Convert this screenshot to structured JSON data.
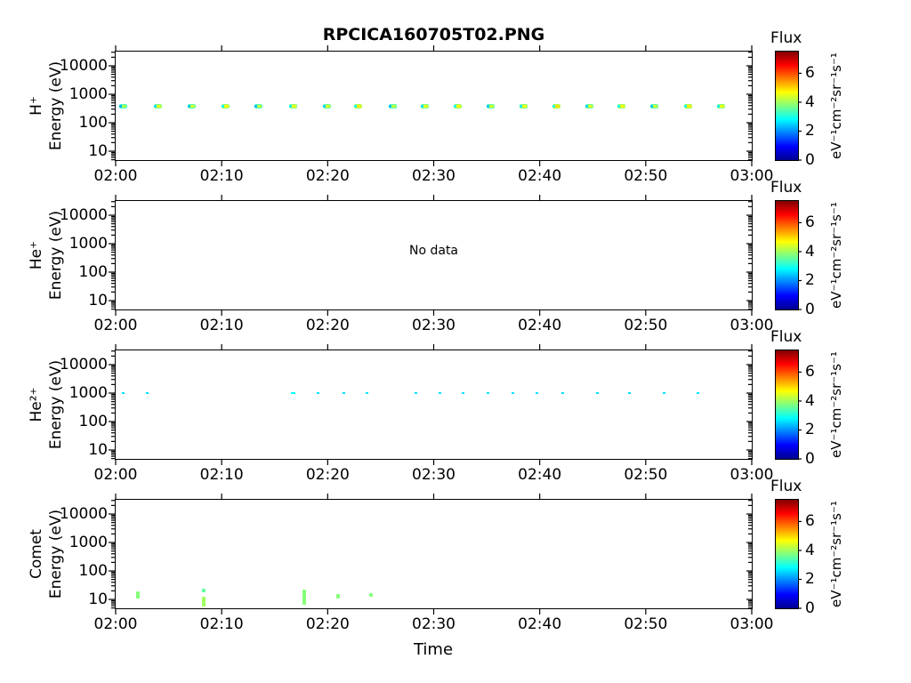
{
  "title": "RPCICA160705T02.PNG",
  "xaxis": {
    "title": "Time",
    "tick_labels": [
      "02:00",
      "02:10",
      "02:20",
      "02:30",
      "02:40",
      "02:50",
      "03:00"
    ],
    "tick_minutes": [
      0,
      10,
      20,
      30,
      40,
      50,
      60
    ]
  },
  "yaxis": {
    "tick_labels": [
      "10000",
      "1000",
      "100",
      "10"
    ],
    "tick_values_eV": [
      10000,
      1000,
      100,
      10
    ],
    "scale": "log"
  },
  "colorbar": {
    "title": "Flux",
    "units": "eV⁻¹cm⁻²sr⁻¹s⁻¹",
    "tick_labels": [
      "0",
      "2",
      "4",
      "6"
    ],
    "tick_values": [
      0,
      2,
      4,
      6
    ],
    "min": 0,
    "max": 7.5,
    "colormap": "jet"
  },
  "no_data_text": "No data",
  "chart_data": [
    {
      "id": "h-plus",
      "type": "heatmap",
      "species_display": "H⁺",
      "ylabel": "Energy (eV)",
      "y_scale": "log",
      "ylim_eV": [
        5,
        31600
      ],
      "x_range": [
        "02:00",
        "03:00"
      ],
      "no_data": false,
      "point_format": [
        "minutes_after_02:00",
        "energy_eV",
        "flux"
      ],
      "marker": {
        "style": "blob",
        "w": 9,
        "h": 5
      },
      "points": [
        [
          0.75,
          390,
          3.3
        ],
        [
          4.0,
          390,
          3.7
        ],
        [
          7.2,
          390,
          3.5
        ],
        [
          10.4,
          390,
          3.9
        ],
        [
          13.5,
          390,
          3.4
        ],
        [
          16.7,
          390,
          3.8
        ],
        [
          19.9,
          390,
          3.6
        ],
        [
          22.9,
          390,
          4.0
        ],
        [
          26.1,
          390,
          3.4
        ],
        [
          29.2,
          390,
          3.7
        ],
        [
          32.3,
          390,
          3.9
        ],
        [
          35.4,
          390,
          3.5
        ],
        [
          38.5,
          390,
          3.8
        ],
        [
          41.6,
          390,
          4.1
        ],
        [
          44.7,
          390,
          3.6
        ],
        [
          47.7,
          390,
          3.9
        ],
        [
          50.8,
          390,
          3.5
        ],
        [
          54.0,
          390,
          4.0
        ],
        [
          57.1,
          390,
          3.8
        ]
      ]
    },
    {
      "id": "he-plus",
      "type": "heatmap",
      "species_display": "He⁺",
      "ylabel": "Energy (eV)",
      "y_scale": "log",
      "ylim_eV": [
        5,
        31600
      ],
      "x_range": [
        "02:00",
        "03:00"
      ],
      "no_data": true,
      "points": []
    },
    {
      "id": "he2-plus",
      "type": "heatmap",
      "species_display": "He²⁺",
      "ylabel": "Energy (eV)",
      "y_scale": "log",
      "ylim_eV": [
        5,
        31600
      ],
      "x_range": [
        "02:00",
        "03:00"
      ],
      "no_data": false,
      "point_format": [
        "minutes_after_02:00",
        "energy_eV",
        "flux",
        "optional_width_px"
      ],
      "marker": {
        "style": "dot",
        "w": 3,
        "h": 2
      },
      "points": [
        [
          0.75,
          1000,
          2.6
        ],
        [
          3.0,
          1000,
          2.6
        ],
        [
          16.7,
          1000,
          2.8,
          5
        ],
        [
          19.1,
          1000,
          2.6
        ],
        [
          21.5,
          1000,
          2.6
        ],
        [
          23.7,
          1000,
          2.6
        ],
        [
          28.3,
          1000,
          2.6
        ],
        [
          30.6,
          1000,
          2.6
        ],
        [
          32.8,
          1000,
          2.6
        ],
        [
          35.1,
          1000,
          2.6
        ],
        [
          37.5,
          1000,
          2.6
        ],
        [
          39.7,
          1000,
          2.6
        ],
        [
          42.2,
          1000,
          2.6
        ],
        [
          45.4,
          1000,
          2.6
        ],
        [
          48.5,
          1000,
          2.6
        ],
        [
          51.7,
          1000,
          2.6
        ],
        [
          54.9,
          1000,
          2.6
        ]
      ]
    },
    {
      "id": "comet",
      "type": "heatmap",
      "species_display": "Comet",
      "ylabel": "Energy (eV)",
      "y_scale": "log",
      "ylim_eV": [
        5,
        31600
      ],
      "x_range": [
        "02:00",
        "03:00"
      ],
      "no_data": false,
      "bar_format": [
        "minutes_after_02:00",
        "energy_min_eV",
        "energy_max_eV",
        "flux"
      ],
      "marker": {
        "style": "bar",
        "w": 4
      },
      "bars": [
        [
          2.1,
          11,
          19,
          3.8
        ],
        [
          8.3,
          5.6,
          12,
          4.0
        ],
        [
          8.3,
          18,
          23,
          3.5
        ],
        [
          17.8,
          6.5,
          22,
          3.8
        ],
        [
          21.0,
          11,
          15,
          3.8
        ],
        [
          24.1,
          12,
          16,
          3.8
        ]
      ]
    }
  ]
}
